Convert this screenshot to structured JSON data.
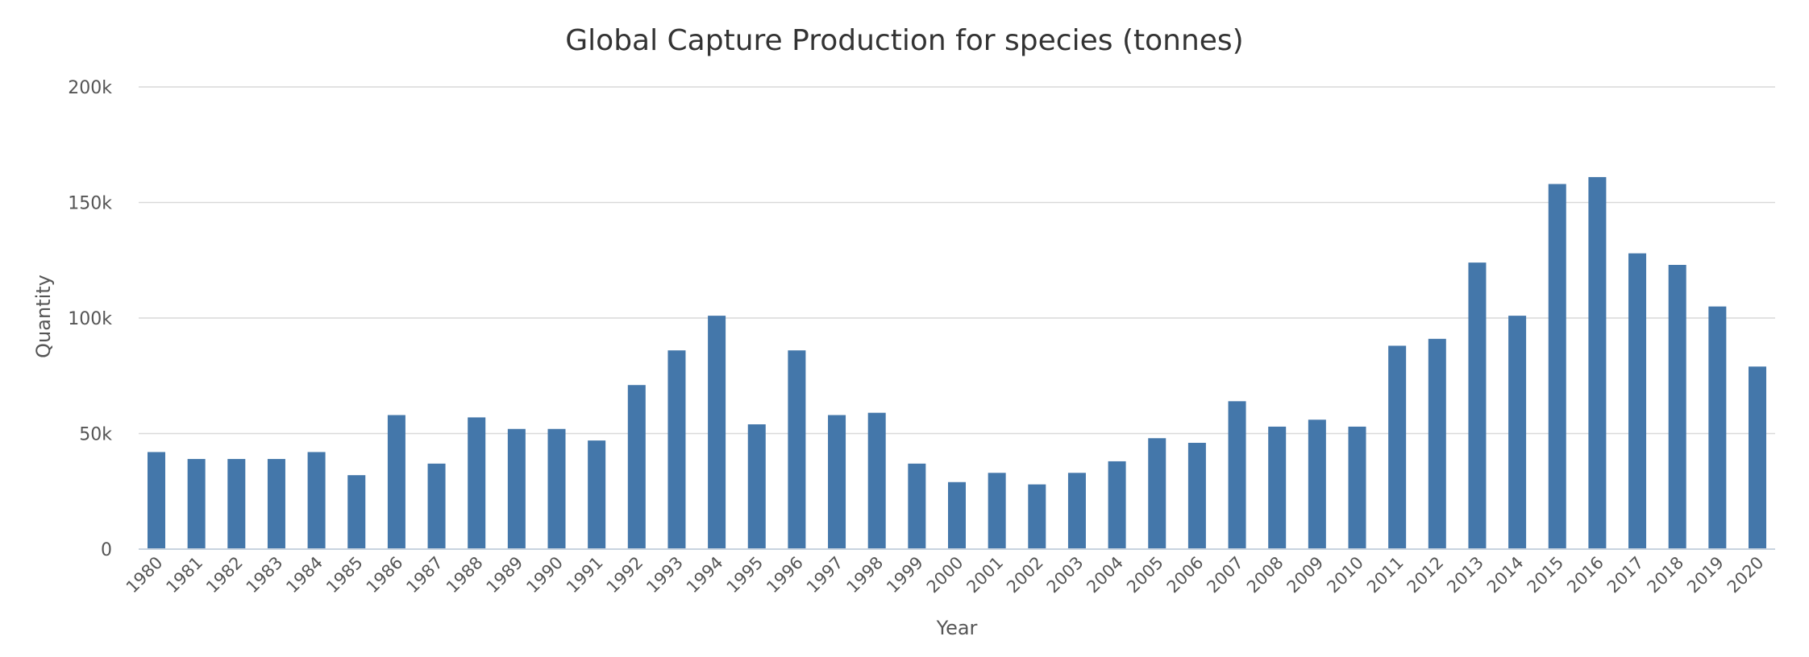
{
  "chart_data": {
    "type": "bar",
    "title": "Global Capture Production for species (tonnes)",
    "xlabel": "Year",
    "ylabel": "Quantity",
    "ylim": [
      0,
      200000
    ],
    "y_ticks": [
      {
        "value": 0,
        "label": "0"
      },
      {
        "value": 50000,
        "label": "50k"
      },
      {
        "value": 100000,
        "label": "100k"
      },
      {
        "value": 150000,
        "label": "150k"
      },
      {
        "value": 200000,
        "label": "200k"
      }
    ],
    "grid": true,
    "legend": "none",
    "bar_color": "#4477AA",
    "categories": [
      "1980",
      "1981",
      "1982",
      "1983",
      "1984",
      "1985",
      "1986",
      "1987",
      "1988",
      "1989",
      "1990",
      "1991",
      "1992",
      "1993",
      "1994",
      "1995",
      "1996",
      "1997",
      "1998",
      "1999",
      "2000",
      "2001",
      "2002",
      "2003",
      "2004",
      "2005",
      "2006",
      "2007",
      "2008",
      "2009",
      "2010",
      "2011",
      "2012",
      "2013",
      "2014",
      "2015",
      "2016",
      "2017",
      "2018",
      "2019",
      "2020"
    ],
    "values": [
      42000,
      39000,
      39000,
      39000,
      42000,
      32000,
      58000,
      37000,
      57000,
      52000,
      52000,
      47000,
      71000,
      86000,
      101000,
      54000,
      86000,
      58000,
      59000,
      37000,
      29000,
      33000,
      28000,
      33000,
      38000,
      48000,
      46000,
      64000,
      53000,
      56000,
      53000,
      88000,
      91000,
      124000,
      101000,
      158000,
      161000,
      128000,
      123000,
      105000,
      79000
    ]
  }
}
